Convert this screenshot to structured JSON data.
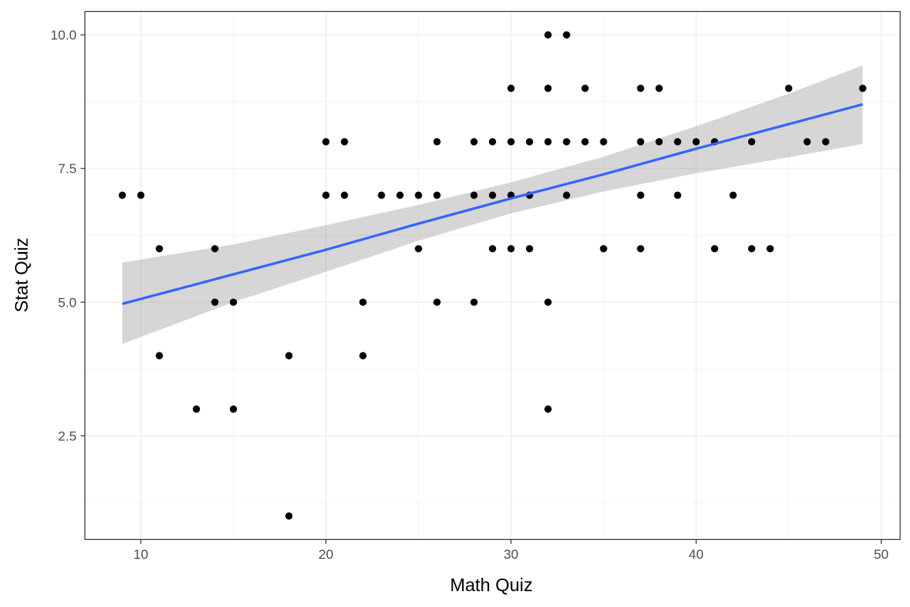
{
  "chart_data": {
    "type": "scatter",
    "title": "",
    "xlabel": "Math Quiz",
    "ylabel": "Stat Quiz",
    "xlim": [
      7.0,
      51.0
    ],
    "ylim": [
      0.57,
      10.43
    ],
    "x_ticks": [
      10,
      20,
      30,
      40,
      50
    ],
    "x_tick_labels": [
      "10",
      "20",
      "30",
      "40",
      "50"
    ],
    "y_ticks": [
      2.5,
      5.0,
      7.5,
      10.0
    ],
    "y_tick_labels": [
      "2.5",
      "5.0",
      "7.5",
      "10.0"
    ],
    "grid": true,
    "legend": "none",
    "points": [
      {
        "x": 9,
        "y": 7
      },
      {
        "x": 10,
        "y": 7
      },
      {
        "x": 11,
        "y": 6
      },
      {
        "x": 11,
        "y": 4
      },
      {
        "x": 13,
        "y": 3
      },
      {
        "x": 14,
        "y": 6
      },
      {
        "x": 14,
        "y": 5
      },
      {
        "x": 15,
        "y": 5
      },
      {
        "x": 15,
        "y": 3
      },
      {
        "x": 18,
        "y": 4
      },
      {
        "x": 18,
        "y": 1
      },
      {
        "x": 20,
        "y": 8
      },
      {
        "x": 20,
        "y": 7
      },
      {
        "x": 21,
        "y": 8
      },
      {
        "x": 21,
        "y": 7
      },
      {
        "x": 22,
        "y": 5
      },
      {
        "x": 22,
        "y": 4
      },
      {
        "x": 23,
        "y": 7
      },
      {
        "x": 24,
        "y": 7
      },
      {
        "x": 25,
        "y": 7
      },
      {
        "x": 25,
        "y": 6
      },
      {
        "x": 26,
        "y": 8
      },
      {
        "x": 26,
        "y": 7
      },
      {
        "x": 26,
        "y": 5
      },
      {
        "x": 28,
        "y": 8
      },
      {
        "x": 28,
        "y": 7
      },
      {
        "x": 28,
        "y": 5
      },
      {
        "x": 29,
        "y": 8
      },
      {
        "x": 29,
        "y": 7
      },
      {
        "x": 29,
        "y": 6
      },
      {
        "x": 30,
        "y": 9
      },
      {
        "x": 30,
        "y": 8
      },
      {
        "x": 30,
        "y": 7
      },
      {
        "x": 30,
        "y": 6
      },
      {
        "x": 31,
        "y": 8
      },
      {
        "x": 31,
        "y": 7
      },
      {
        "x": 31,
        "y": 6
      },
      {
        "x": 32,
        "y": 10
      },
      {
        "x": 32,
        "y": 9
      },
      {
        "x": 32,
        "y": 8
      },
      {
        "x": 32,
        "y": 5
      },
      {
        "x": 32,
        "y": 3
      },
      {
        "x": 33,
        "y": 10
      },
      {
        "x": 33,
        "y": 8
      },
      {
        "x": 33,
        "y": 7
      },
      {
        "x": 34,
        "y": 9
      },
      {
        "x": 34,
        "y": 8
      },
      {
        "x": 35,
        "y": 8
      },
      {
        "x": 35,
        "y": 6
      },
      {
        "x": 37,
        "y": 9
      },
      {
        "x": 37,
        "y": 8
      },
      {
        "x": 37,
        "y": 7
      },
      {
        "x": 37,
        "y": 6
      },
      {
        "x": 38,
        "y": 9
      },
      {
        "x": 38,
        "y": 8
      },
      {
        "x": 39,
        "y": 8
      },
      {
        "x": 39,
        "y": 7
      },
      {
        "x": 40,
        "y": 8
      },
      {
        "x": 41,
        "y": 8
      },
      {
        "x": 41,
        "y": 6
      },
      {
        "x": 42,
        "y": 7
      },
      {
        "x": 43,
        "y": 8
      },
      {
        "x": 43,
        "y": 6
      },
      {
        "x": 44,
        "y": 6
      },
      {
        "x": 45,
        "y": 9
      },
      {
        "x": 46,
        "y": 8
      },
      {
        "x": 47,
        "y": 8
      },
      {
        "x": 49,
        "y": 9
      }
    ],
    "fit_line": {
      "x": [
        9,
        15,
        20,
        25,
        30,
        35,
        40,
        45,
        49
      ],
      "y": [
        4.97,
        5.52,
        5.98,
        6.47,
        6.94,
        7.39,
        7.87,
        8.33,
        8.7
      ],
      "ci_lower": [
        4.22,
        5.0,
        5.57,
        6.15,
        6.66,
        7.07,
        7.41,
        7.71,
        7.96
      ],
      "ci_upper": [
        5.74,
        6.08,
        6.44,
        6.82,
        7.24,
        7.72,
        8.29,
        8.9,
        9.43
      ]
    },
    "colors": {
      "points": "#000000",
      "fit_line": "#3366FF",
      "ribbon": "#999999",
      "grid": "#ebebeb",
      "panel_border": "#333333"
    }
  }
}
